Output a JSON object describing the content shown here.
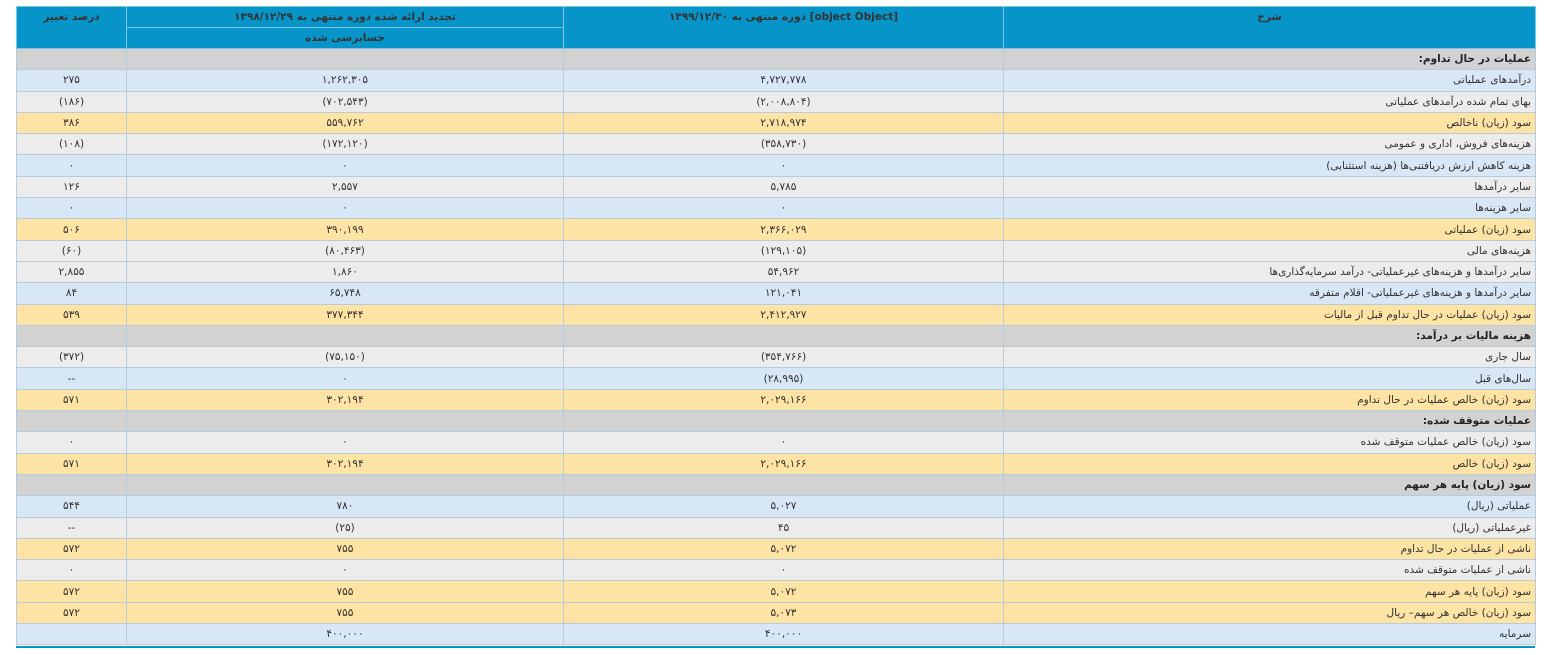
{
  "header": {
    "pct_change": "درصد تغییر",
    "prev_period": "تجدید ارائه شده دوره منتهی به ۱۳۹۸/۱۲/۲۹",
    "prev_audited": "حسابرسی شده",
    "cur_period": "دوره منتهی به ۱۳۹۹/۱۲/۳۰ [object Object]",
    "description": "شرح"
  },
  "rows": [
    {
      "type": "section",
      "desc": "عملیات در حال تداوم:",
      "cur": "",
      "prev": "",
      "pct": ""
    },
    {
      "type": "blue",
      "desc": "درآمدهای عملیاتی",
      "cur": "۴,۷۲۷,۷۷۸",
      "prev": "۱,۲۶۲,۳۰۵",
      "pct": "۲۷۵"
    },
    {
      "type": "gray",
      "desc": "بهای تمام شده درآمدهای عملیاتی",
      "cur": "(۲,۰۰۸,۸۰۴)",
      "prev": "(۷۰۲,۵۴۳)",
      "pct": "(۱۸۶)"
    },
    {
      "type": "yellow",
      "desc": "سود (زیان) ناخالص",
      "cur": "۲,۷۱۸,۹۷۴",
      "prev": "۵۵۹,۷۶۲",
      "pct": "۳۸۶"
    },
    {
      "type": "gray",
      "desc": "هزینه‌های فروش، اداری و عمومی",
      "cur": "(۳۵۸,۷۳۰)",
      "prev": "(۱۷۲,۱۲۰)",
      "pct": "(۱۰۸)"
    },
    {
      "type": "blue",
      "desc": "هزینه کاهش ارزش دریافتنی‌ها (هزینه استثنایی)",
      "cur": "۰",
      "prev": "۰",
      "pct": "۰"
    },
    {
      "type": "gray",
      "desc": "سایر درآمدها",
      "cur": "۵,۷۸۵",
      "prev": "۲,۵۵۷",
      "pct": "۱۲۶"
    },
    {
      "type": "blue",
      "desc": "سایر هزینه‌ها",
      "cur": "۰",
      "prev": "۰",
      "pct": "۰"
    },
    {
      "type": "yellow",
      "desc": "سود (زیان) عملیاتی",
      "cur": "۲,۳۶۶,۰۲۹",
      "prev": "۳۹۰,۱۹۹",
      "pct": "۵۰۶"
    },
    {
      "type": "gray",
      "desc": "هزینه‌های مالی",
      "cur": "(۱۲۹,۱۰۵)",
      "prev": "(۸۰,۴۶۳)",
      "pct": "(۶۰)"
    },
    {
      "type": "gray",
      "desc": "سایر درآمدها و هزینه‌های غیرعملیاتی- درآمد سرمایه‌گذاری‌ها",
      "cur": "۵۴,۹۶۲",
      "prev": "۱,۸۶۰",
      "pct": "۲,۸۵۵"
    },
    {
      "type": "blue",
      "desc": "سایر درآمدها و هزینه‌های غیرعملیاتی- اقلام متفرقه",
      "cur": "۱۲۱,۰۴۱",
      "prev": "۶۵,۷۴۸",
      "pct": "۸۴"
    },
    {
      "type": "yellow",
      "desc": "سود (زیان) عملیات در حال تداوم قبل از مالیات",
      "cur": "۲,۴۱۲,۹۲۷",
      "prev": "۳۷۷,۳۴۴",
      "pct": "۵۳۹"
    },
    {
      "type": "section",
      "desc": "هزینه مالیات بر درآمد:",
      "cur": "",
      "prev": "",
      "pct": ""
    },
    {
      "type": "gray",
      "desc": "سال جاری",
      "cur": "(۳۵۴,۷۶۶)",
      "prev": "(۷۵,۱۵۰)",
      "pct": "(۳۷۲)"
    },
    {
      "type": "blue",
      "desc": "سال‌های قبل",
      "cur": "(۲۸,۹۹۵)",
      "prev": "۰",
      "pct": "--"
    },
    {
      "type": "yellow",
      "desc": "سود (زیان) خالص عملیات در حال تداوم",
      "cur": "۲,۰۲۹,۱۶۶",
      "prev": "۳۰۲,۱۹۴",
      "pct": "۵۷۱"
    },
    {
      "type": "section",
      "desc": "عملیات متوقف شده:",
      "cur": "",
      "prev": "",
      "pct": ""
    },
    {
      "type": "gray",
      "desc": "سود (زیان) خالص عملیات متوقف شده",
      "cur": "۰",
      "prev": "۰",
      "pct": "۰"
    },
    {
      "type": "yellow",
      "desc": "سود (زیان) خالص",
      "cur": "۲,۰۲۹,۱۶۶",
      "prev": "۳۰۲,۱۹۴",
      "pct": "۵۷۱"
    },
    {
      "type": "section",
      "desc": "سود (زیان) پایه هر سهم",
      "cur": "",
      "prev": "",
      "pct": ""
    },
    {
      "type": "blue",
      "desc": "عملیاتی (ریال)",
      "cur": "۵,۰۲۷",
      "prev": "۷۸۰",
      "pct": "۵۴۴"
    },
    {
      "type": "gray",
      "desc": "غیرعملیاتی (ریال)",
      "cur": "۴۵",
      "prev": "(۲۵)",
      "pct": "--"
    },
    {
      "type": "yellow",
      "desc": "ناشی از عملیات در حال تداوم",
      "cur": "۵,۰۷۲",
      "prev": "۷۵۵",
      "pct": "۵۷۲"
    },
    {
      "type": "gray",
      "desc": "ناشی از عملیات متوقف شده",
      "cur": "۰",
      "prev": "۰",
      "pct": "۰"
    },
    {
      "type": "yellow",
      "desc": "سود (زیان) پایه هر سهم",
      "cur": "۵,۰۷۲",
      "prev": "۷۵۵",
      "pct": "۵۷۲"
    },
    {
      "type": "yellow",
      "desc": "سود (زیان) خالص هر سهم– ریال",
      "cur": "۵,۰۷۳",
      "prev": "۷۵۵",
      "pct": "۵۷۲"
    },
    {
      "type": "blue",
      "desc": "سرمایه",
      "cur": "۴۰۰,۰۰۰",
      "prev": "۴۰۰,۰۰۰",
      "pct": ""
    }
  ],
  "colors": {
    "header_bg": "#0794c9",
    "section_bg": "#d2d2d2",
    "blue_row_bg": "#d7e7f5",
    "gray_row_bg": "#ececec",
    "yellow_row_bg": "#fde3a4",
    "negative_text": "#e01414"
  }
}
